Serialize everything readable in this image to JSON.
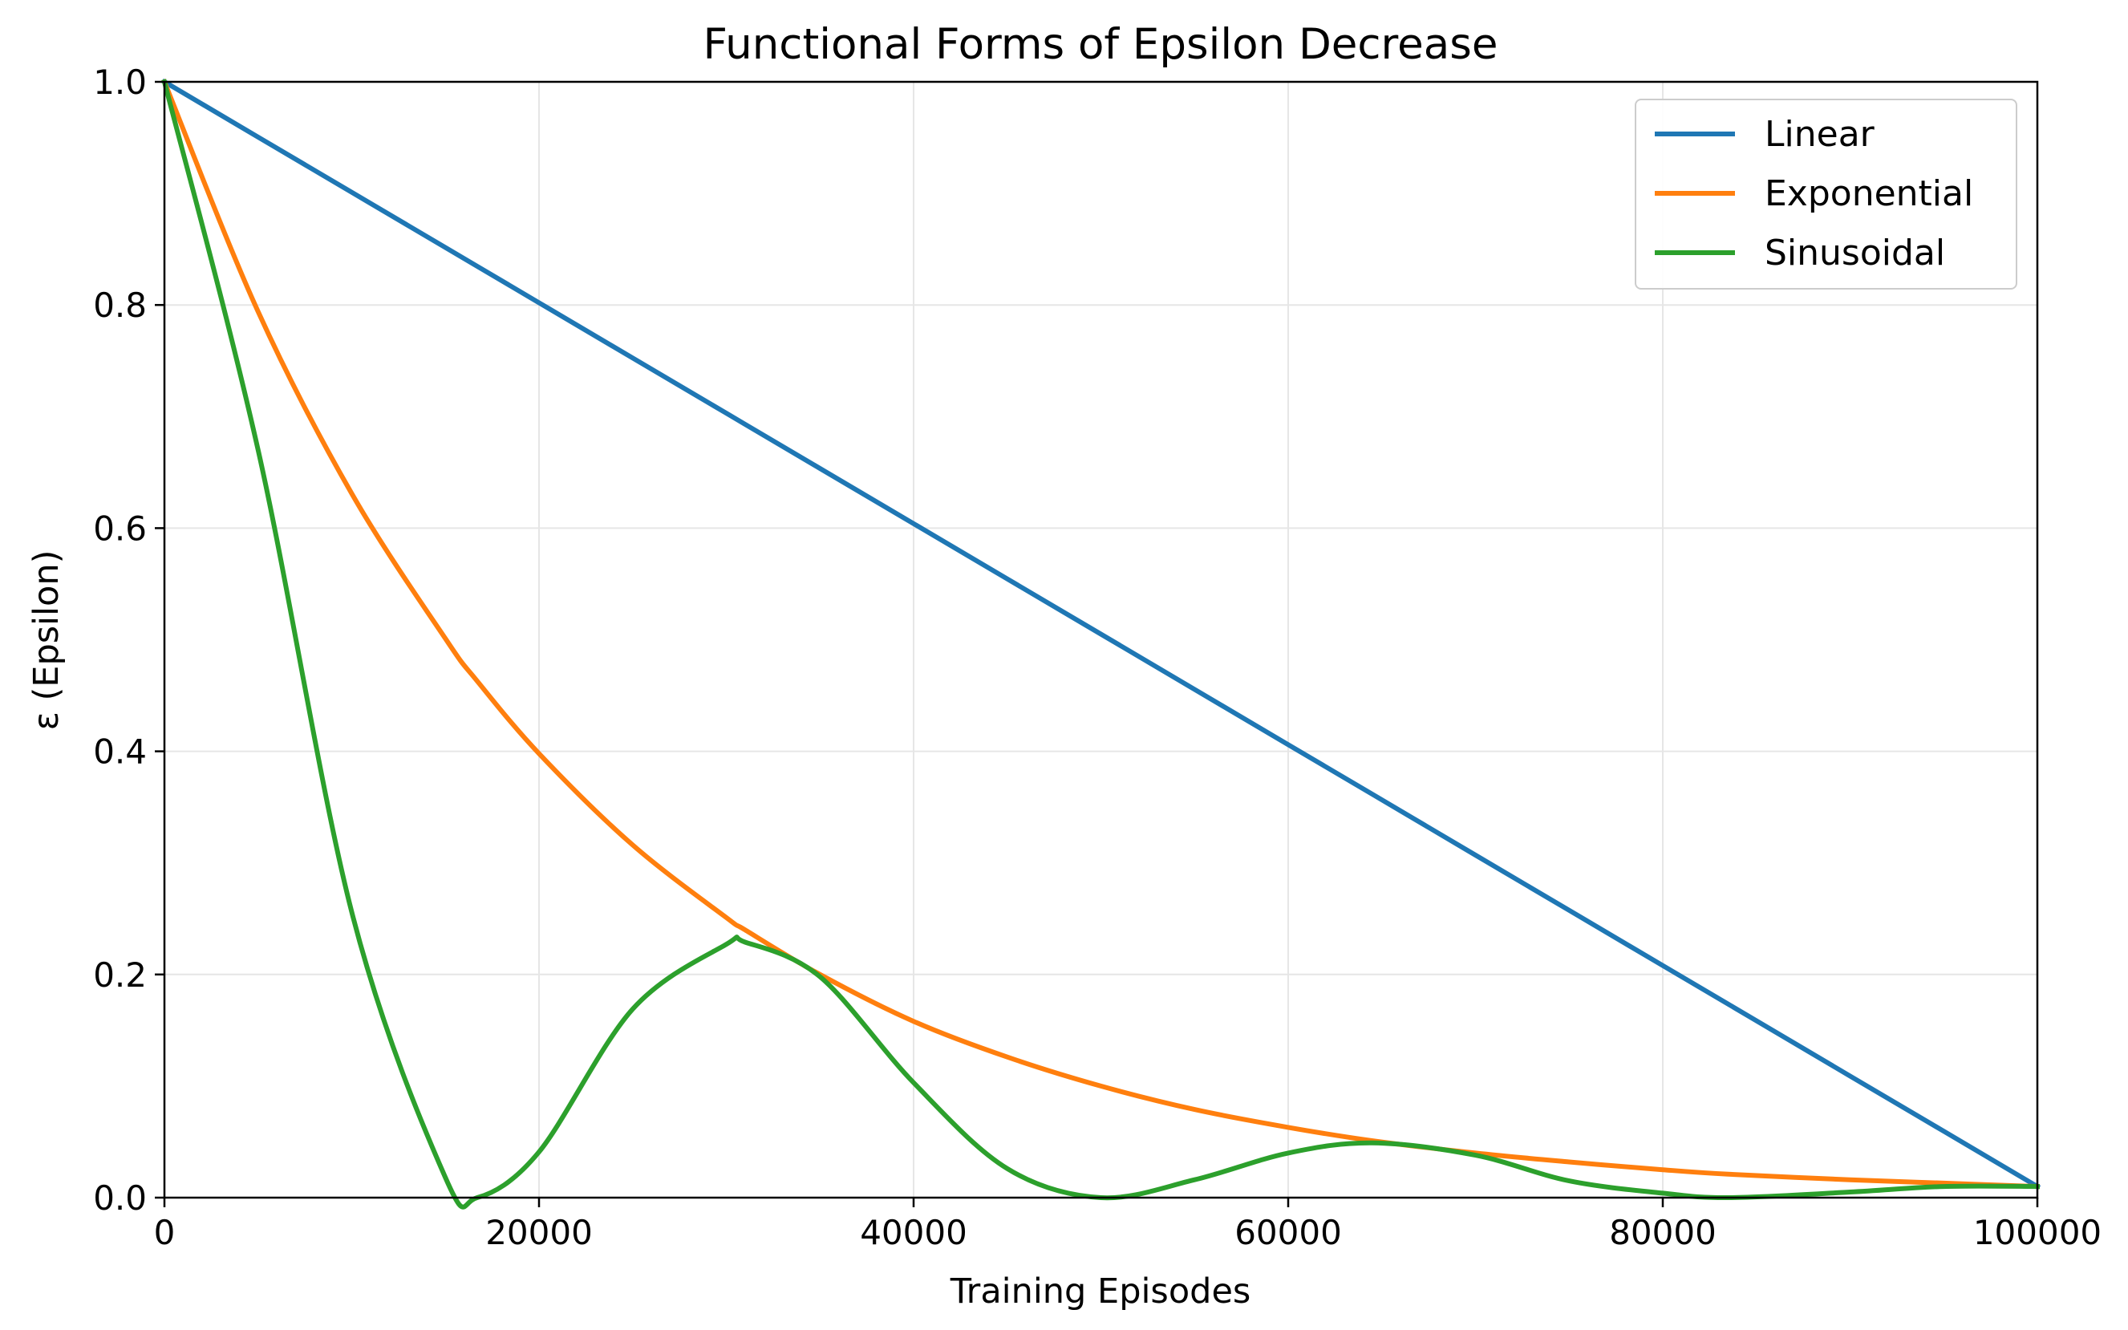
{
  "chart_data": {
    "type": "line",
    "title": "Functional Forms of Epsilon Decrease",
    "xlabel": "Training Episodes",
    "ylabel": "ε (Epsilon)",
    "xlim": [
      0,
      100000
    ],
    "ylim": [
      0.0,
      1.0
    ],
    "x_ticks": [
      0,
      20000,
      40000,
      60000,
      80000,
      100000
    ],
    "x_tick_labels": [
      "0",
      "20000",
      "40000",
      "60000",
      "80000",
      "100000"
    ],
    "y_ticks": [
      0.0,
      0.2,
      0.4,
      0.6,
      0.8,
      1.0
    ],
    "y_tick_labels": [
      "0.0",
      "0.2",
      "0.4",
      "0.6",
      "0.8",
      "1.0"
    ],
    "grid": true,
    "legend_position": "top-right",
    "x": [
      0,
      5000,
      10000,
      15000,
      16700,
      20000,
      25000,
      30000,
      31000,
      35000,
      40000,
      45000,
      50000,
      55000,
      60000,
      64500,
      70000,
      75000,
      80000,
      83500,
      90000,
      95000,
      100000
    ],
    "series": [
      {
        "name": "Linear",
        "color": "#1f77b4",
        "values": [
          1.0,
          0.9505,
          0.901,
          0.8515,
          0.8347,
          0.802,
          0.7525,
          0.703,
          0.6931,
          0.6535,
          0.604,
          0.5545,
          0.505,
          0.4555,
          0.406,
          0.3615,
          0.307,
          0.2575,
          0.208,
          0.1734,
          0.109,
          0.0595,
          0.01
        ]
      },
      {
        "name": "Exponential",
        "color": "#ff7f0e",
        "values": [
          1.0,
          0.794,
          0.631,
          0.501,
          0.463,
          0.398,
          0.316,
          0.251,
          0.24,
          0.2,
          0.158,
          0.126,
          0.1,
          0.079,
          0.063,
          0.051,
          0.04,
          0.032,
          0.025,
          0.021,
          0.016,
          0.013,
          0.01
        ]
      },
      {
        "name": "Sinusoidal",
        "color": "#2ca02c",
        "values": [
          1.0,
          0.67,
          0.256,
          0.018,
          0.0,
          0.041,
          0.169,
          0.227,
          0.229,
          0.198,
          0.103,
          0.026,
          0.0,
          0.016,
          0.04,
          0.049,
          0.038,
          0.015,
          0.004,
          0.0,
          0.005,
          0.01,
          0.01
        ]
      }
    ]
  }
}
